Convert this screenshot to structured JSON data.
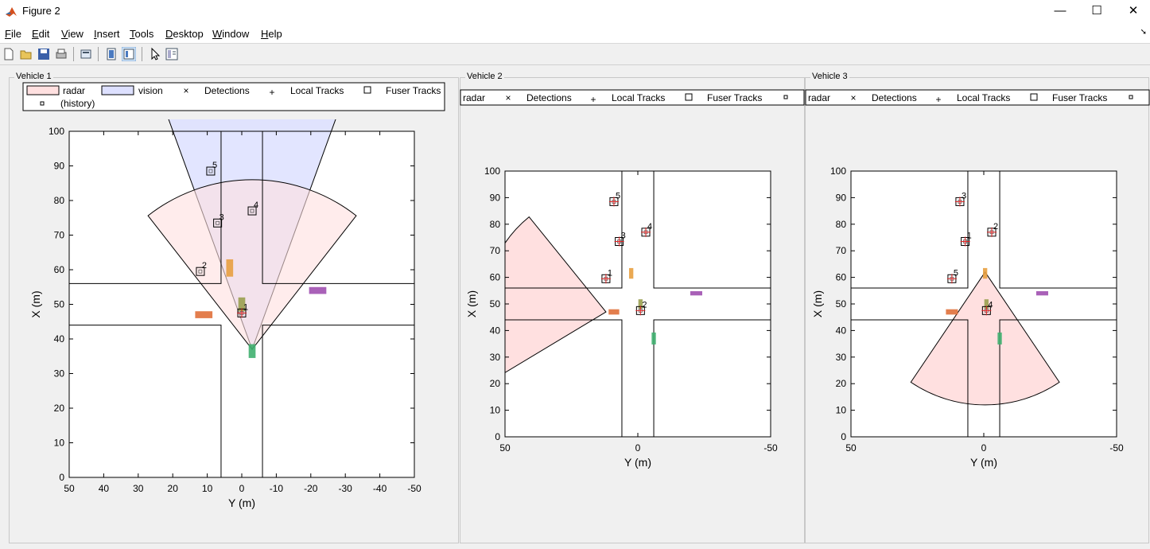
{
  "window": {
    "title": "Figure 2",
    "minimize": "—",
    "maximize": "☐",
    "close": "✕"
  },
  "menu": [
    {
      "label": "File",
      "key": "F",
      "rest": "ile"
    },
    {
      "label": "Edit",
      "key": "E",
      "rest": "dit"
    },
    {
      "label": "View",
      "key": "V",
      "rest": "iew"
    },
    {
      "label": "Insert",
      "key": "I",
      "rest": "nsert"
    },
    {
      "label": "Tools",
      "key": "T",
      "rest": "ools"
    },
    {
      "label": "Desktop",
      "key": "D",
      "rest": "esktop"
    },
    {
      "label": "Window",
      "key": "W",
      "rest": "indow"
    },
    {
      "label": "Help",
      "key": "H",
      "rest": "elp"
    }
  ],
  "toolbar_icons": [
    "new-figure-icon",
    "open-file-icon",
    "save-icon",
    "print-icon",
    "print-preview-icon",
    "hide-plot-tools-icon",
    "show-plot-tools-icon",
    "edit-plot-icon",
    "property-inspector-icon"
  ],
  "colors": {
    "radar_fill": "#ffe0e0",
    "vision_fill": "#dde0ff",
    "overlap_fill": "#e6cfea",
    "detection": "#22c8c8",
    "local_track": "#e02020"
  },
  "vehicles": [
    {
      "title": "Vehicle 1",
      "legend": [
        "radar",
        "vision",
        "Detections",
        "Local Tracks",
        "Fuser Tracks",
        "(history)"
      ],
      "xlabel": "X (m)",
      "ylabel": "Y (m)",
      "x_ticks": [
        0,
        10,
        20,
        30,
        40,
        50,
        60,
        70,
        80,
        90,
        100
      ],
      "y_ticks": [
        50,
        40,
        30,
        20,
        10,
        0,
        -10,
        -20,
        -30,
        -40,
        -50
      ],
      "fuser_tracks": [
        {
          "id": "1",
          "x": 47.5,
          "y": 0
        },
        {
          "id": "2",
          "x": 59.5,
          "y": 12
        },
        {
          "id": "3",
          "x": 73.5,
          "y": 7
        },
        {
          "id": "4",
          "x": 77,
          "y": -3
        },
        {
          "id": "5",
          "x": 88.5,
          "y": 9
        }
      ]
    },
    {
      "title": "Vehicle 2",
      "legend": [
        "radar",
        "Detections",
        "Local Tracks",
        "Fuser Tracks"
      ],
      "xlabel": "X (m)",
      "ylabel": "Y (m)",
      "x_ticks": [
        0,
        10,
        20,
        30,
        40,
        50,
        60,
        70,
        80,
        90,
        100
      ],
      "y_ticks": [
        50,
        0,
        -50
      ],
      "fuser_tracks": [
        {
          "id": "1",
          "x": 59.5,
          "y": 12
        },
        {
          "id": "2",
          "x": 47.5,
          "y": -1
        },
        {
          "id": "3",
          "x": 73.5,
          "y": 7
        },
        {
          "id": "4",
          "x": 77,
          "y": -3
        },
        {
          "id": "5",
          "x": 88.5,
          "y": 9
        }
      ]
    },
    {
      "title": "Vehicle 3",
      "legend": [
        "radar",
        "Detections",
        "Local Tracks",
        "Fuser Tracks"
      ],
      "xlabel": "X (m)",
      "ylabel": "Y (m)",
      "x_ticks": [
        0,
        10,
        20,
        30,
        40,
        50,
        60,
        70,
        80,
        90,
        100
      ],
      "y_ticks": [
        50,
        0,
        -50
      ],
      "fuser_tracks": [
        {
          "id": "1",
          "x": 73.5,
          "y": 7
        },
        {
          "id": "2",
          "x": 77,
          "y": -3
        },
        {
          "id": "3",
          "x": 88.5,
          "y": 9
        },
        {
          "id": "4",
          "x": 47.5,
          "y": -1
        },
        {
          "id": "5",
          "x": 59.5,
          "y": 12
        }
      ]
    }
  ]
}
